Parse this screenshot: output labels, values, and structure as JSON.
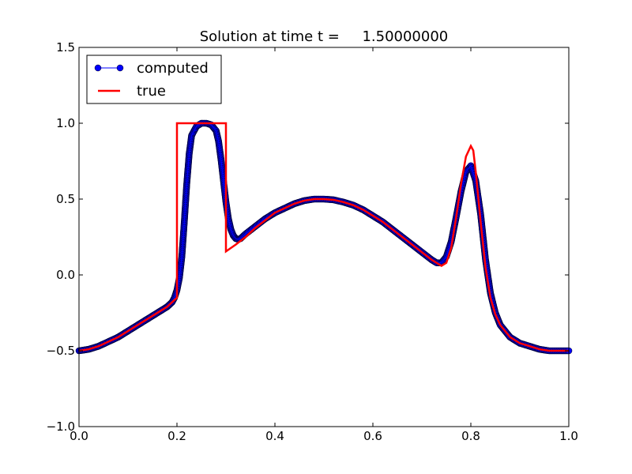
{
  "chart_data": {
    "type": "line",
    "title": "Solution at time t =     1.50000000",
    "xlabel": "",
    "ylabel": "",
    "xlim": [
      0.0,
      1.0
    ],
    "ylim": [
      -1.0,
      1.5
    ],
    "xticks": [
      "0.0",
      "0.2",
      "0.4",
      "0.6",
      "0.8",
      "1.0"
    ],
    "yticks": [
      "−1.0",
      "−0.5",
      "0.0",
      "0.5",
      "1.0",
      "1.5"
    ],
    "xtick_values": [
      0.0,
      0.2,
      0.4,
      0.6,
      0.8,
      1.0
    ],
    "ytick_values": [
      -1.0,
      -0.5,
      0.0,
      0.5,
      1.0,
      1.5
    ],
    "grid": false,
    "legend": "top-left",
    "series": [
      {
        "name": "computed",
        "color": "#0000ff",
        "style": "line-with-circle-markers",
        "x": [
          0.0,
          0.02,
          0.04,
          0.06,
          0.08,
          0.1,
          0.12,
          0.14,
          0.16,
          0.18,
          0.19,
          0.195,
          0.2,
          0.205,
          0.21,
          0.215,
          0.22,
          0.225,
          0.23,
          0.24,
          0.25,
          0.26,
          0.27,
          0.28,
          0.285,
          0.29,
          0.295,
          0.3,
          0.305,
          0.31,
          0.315,
          0.32,
          0.325,
          0.33,
          0.335,
          0.34,
          0.36,
          0.38,
          0.4,
          0.42,
          0.44,
          0.46,
          0.48,
          0.5,
          0.52,
          0.54,
          0.56,
          0.58,
          0.6,
          0.62,
          0.64,
          0.66,
          0.68,
          0.7,
          0.72,
          0.73,
          0.74,
          0.75,
          0.76,
          0.77,
          0.78,
          0.79,
          0.8,
          0.81,
          0.82,
          0.83,
          0.84,
          0.85,
          0.86,
          0.88,
          0.9,
          0.92,
          0.94,
          0.96,
          0.98,
          1.0
        ],
        "y": [
          -0.5,
          -0.49,
          -0.47,
          -0.44,
          -0.41,
          -0.37,
          -0.33,
          -0.29,
          -0.25,
          -0.21,
          -0.18,
          -0.15,
          -0.1,
          -0.02,
          0.12,
          0.35,
          0.6,
          0.8,
          0.92,
          0.98,
          1.0,
          1.0,
          0.99,
          0.95,
          0.88,
          0.76,
          0.62,
          0.48,
          0.37,
          0.3,
          0.26,
          0.24,
          0.235,
          0.24,
          0.255,
          0.27,
          0.32,
          0.37,
          0.41,
          0.44,
          0.47,
          0.49,
          0.5,
          0.5,
          0.495,
          0.48,
          0.46,
          0.43,
          0.39,
          0.35,
          0.3,
          0.25,
          0.2,
          0.15,
          0.1,
          0.08,
          0.08,
          0.12,
          0.22,
          0.38,
          0.55,
          0.68,
          0.72,
          0.62,
          0.4,
          0.1,
          -0.12,
          -0.25,
          -0.33,
          -0.41,
          -0.45,
          -0.47,
          -0.49,
          -0.5,
          -0.5,
          -0.5
        ]
      },
      {
        "name": "true",
        "color": "#ff0000",
        "style": "line",
        "x": [
          0.0,
          0.02,
          0.04,
          0.06,
          0.08,
          0.1,
          0.12,
          0.14,
          0.16,
          0.18,
          0.19,
          0.2,
          0.2,
          0.3,
          0.3,
          0.32,
          0.34,
          0.36,
          0.38,
          0.4,
          0.42,
          0.44,
          0.46,
          0.48,
          0.5,
          0.52,
          0.54,
          0.56,
          0.58,
          0.6,
          0.62,
          0.64,
          0.66,
          0.68,
          0.7,
          0.72,
          0.73,
          0.74,
          0.75,
          0.76,
          0.77,
          0.78,
          0.79,
          0.8,
          0.805,
          0.81,
          0.82,
          0.83,
          0.84,
          0.85,
          0.86,
          0.88,
          0.9,
          0.92,
          0.94,
          0.96,
          0.98,
          1.0
        ],
        "y": [
          -0.5,
          -0.49,
          -0.47,
          -0.44,
          -0.41,
          -0.37,
          -0.33,
          -0.29,
          -0.25,
          -0.21,
          -0.18,
          -0.15,
          1.0,
          1.0,
          0.155,
          0.2,
          0.25,
          0.31,
          0.36,
          0.41,
          0.44,
          0.47,
          0.49,
          0.5,
          0.5,
          0.495,
          0.48,
          0.46,
          0.43,
          0.39,
          0.35,
          0.3,
          0.25,
          0.2,
          0.15,
          0.1,
          0.08,
          0.06,
          0.08,
          0.18,
          0.38,
          0.6,
          0.78,
          0.85,
          0.82,
          0.68,
          0.35,
          0.05,
          -0.15,
          -0.26,
          -0.33,
          -0.41,
          -0.45,
          -0.47,
          -0.49,
          -0.5,
          -0.5,
          -0.5
        ]
      }
    ]
  }
}
